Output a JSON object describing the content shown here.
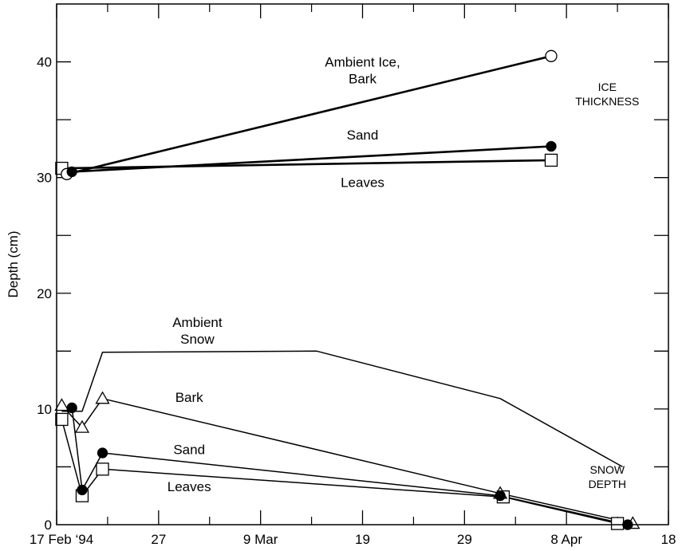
{
  "chart_data": {
    "type": "line",
    "title": "",
    "xlabel": "",
    "ylabel": "Depth (cm)",
    "x_domain_days": [
      0,
      60
    ],
    "ylim": [
      0,
      45
    ],
    "x_ticks": [
      {
        "x": 0,
        "label": "17 Feb ‘94"
      },
      {
        "x": 10,
        "label": "27"
      },
      {
        "x": 20,
        "label": "9 Mar"
      },
      {
        "x": 30,
        "label": "19"
      },
      {
        "x": 40,
        "label": "29"
      },
      {
        "x": 50,
        "label": "8 Apr"
      },
      {
        "x": 60,
        "label": "18"
      }
    ],
    "y_ticks": [
      {
        "y": 0,
        "label": "0"
      },
      {
        "y": 10,
        "label": "10"
      },
      {
        "y": 20,
        "label": "20"
      },
      {
        "y": 30,
        "label": "30"
      },
      {
        "y": 40,
        "label": "40"
      }
    ],
    "series": [
      {
        "name": "Ambient Ice, Bark",
        "group": "ice",
        "marker": "open-circle",
        "stroke": 2.6,
        "points": [
          [
            1.0,
            30.3
          ],
          [
            48.5,
            40.5
          ]
        ]
      },
      {
        "name": "Sand",
        "group": "ice",
        "marker": "filled-circle",
        "stroke": 2.6,
        "points": [
          [
            1.5,
            30.5
          ],
          [
            48.5,
            32.7
          ]
        ]
      },
      {
        "name": "Leaves",
        "group": "ice",
        "marker": "open-square",
        "stroke": 2.6,
        "points": [
          [
            0.5,
            30.8
          ],
          [
            48.5,
            31.5
          ]
        ]
      },
      {
        "name": "Ambient Snow",
        "group": "snow",
        "marker": "none",
        "stroke": 1.5,
        "points": [
          [
            0.5,
            9.8
          ],
          [
            2.5,
            9.8
          ],
          [
            4.5,
            14.9
          ],
          [
            25.5,
            15.0
          ],
          [
            43.5,
            10.9
          ],
          [
            55.5,
            5.0
          ]
        ]
      },
      {
        "name": "Bark",
        "group": "snow",
        "marker": "open-triangle",
        "stroke": 1.5,
        "points": [
          [
            0.5,
            10.3
          ],
          [
            2.5,
            8.4
          ],
          [
            4.5,
            10.9
          ],
          [
            43.5,
            2.7
          ],
          [
            56.5,
            0.1
          ]
        ]
      },
      {
        "name": "Sand",
        "group": "snow",
        "marker": "filled-circle",
        "stroke": 1.5,
        "points": [
          [
            1.5,
            10.1
          ],
          [
            2.5,
            3.0
          ],
          [
            4.5,
            6.2
          ],
          [
            43.5,
            2.5
          ],
          [
            56.0,
            0.0
          ]
        ]
      },
      {
        "name": "Leaves",
        "group": "snow",
        "marker": "open-square",
        "stroke": 1.5,
        "points": [
          [
            0.5,
            9.1
          ],
          [
            2.5,
            2.5
          ],
          [
            4.5,
            4.8
          ],
          [
            43.8,
            2.4
          ],
          [
            55.0,
            0.1
          ]
        ]
      }
    ],
    "annotations": [
      {
        "id": "ambient-ice-bark",
        "lines": [
          "Ambient Ice,",
          "Bark"
        ],
        "x": 30,
        "y": 39.6,
        "size": "lg"
      },
      {
        "id": "sand-ice",
        "lines": [
          "Sand"
        ],
        "x": 30,
        "y": 33.3,
        "size": "lg"
      },
      {
        "id": "leaves-ice",
        "lines": [
          "Leaves"
        ],
        "x": 30,
        "y": 29.2,
        "size": "lg"
      },
      {
        "id": "ice-thickness",
        "lines": [
          "ICE",
          "THICKNESS"
        ],
        "x": 54,
        "y": 37.5,
        "size": "sm"
      },
      {
        "id": "ambient-snow",
        "lines": [
          "Ambient",
          "Snow"
        ],
        "x": 13.8,
        "y": 17.1,
        "size": "lg"
      },
      {
        "id": "bark-snow",
        "lines": [
          "Bark"
        ],
        "x": 13.0,
        "y": 10.6,
        "size": "lg"
      },
      {
        "id": "sand-snow",
        "lines": [
          "Sand"
        ],
        "x": 13.0,
        "y": 6.1,
        "size": "lg"
      },
      {
        "id": "leaves-snow",
        "lines": [
          "Leaves"
        ],
        "x": 13.0,
        "y": 2.9,
        "size": "lg"
      },
      {
        "id": "snow-depth",
        "lines": [
          "SNOW",
          "DEPTH"
        ],
        "x": 54,
        "y": 4.4,
        "size": "sm"
      }
    ]
  }
}
